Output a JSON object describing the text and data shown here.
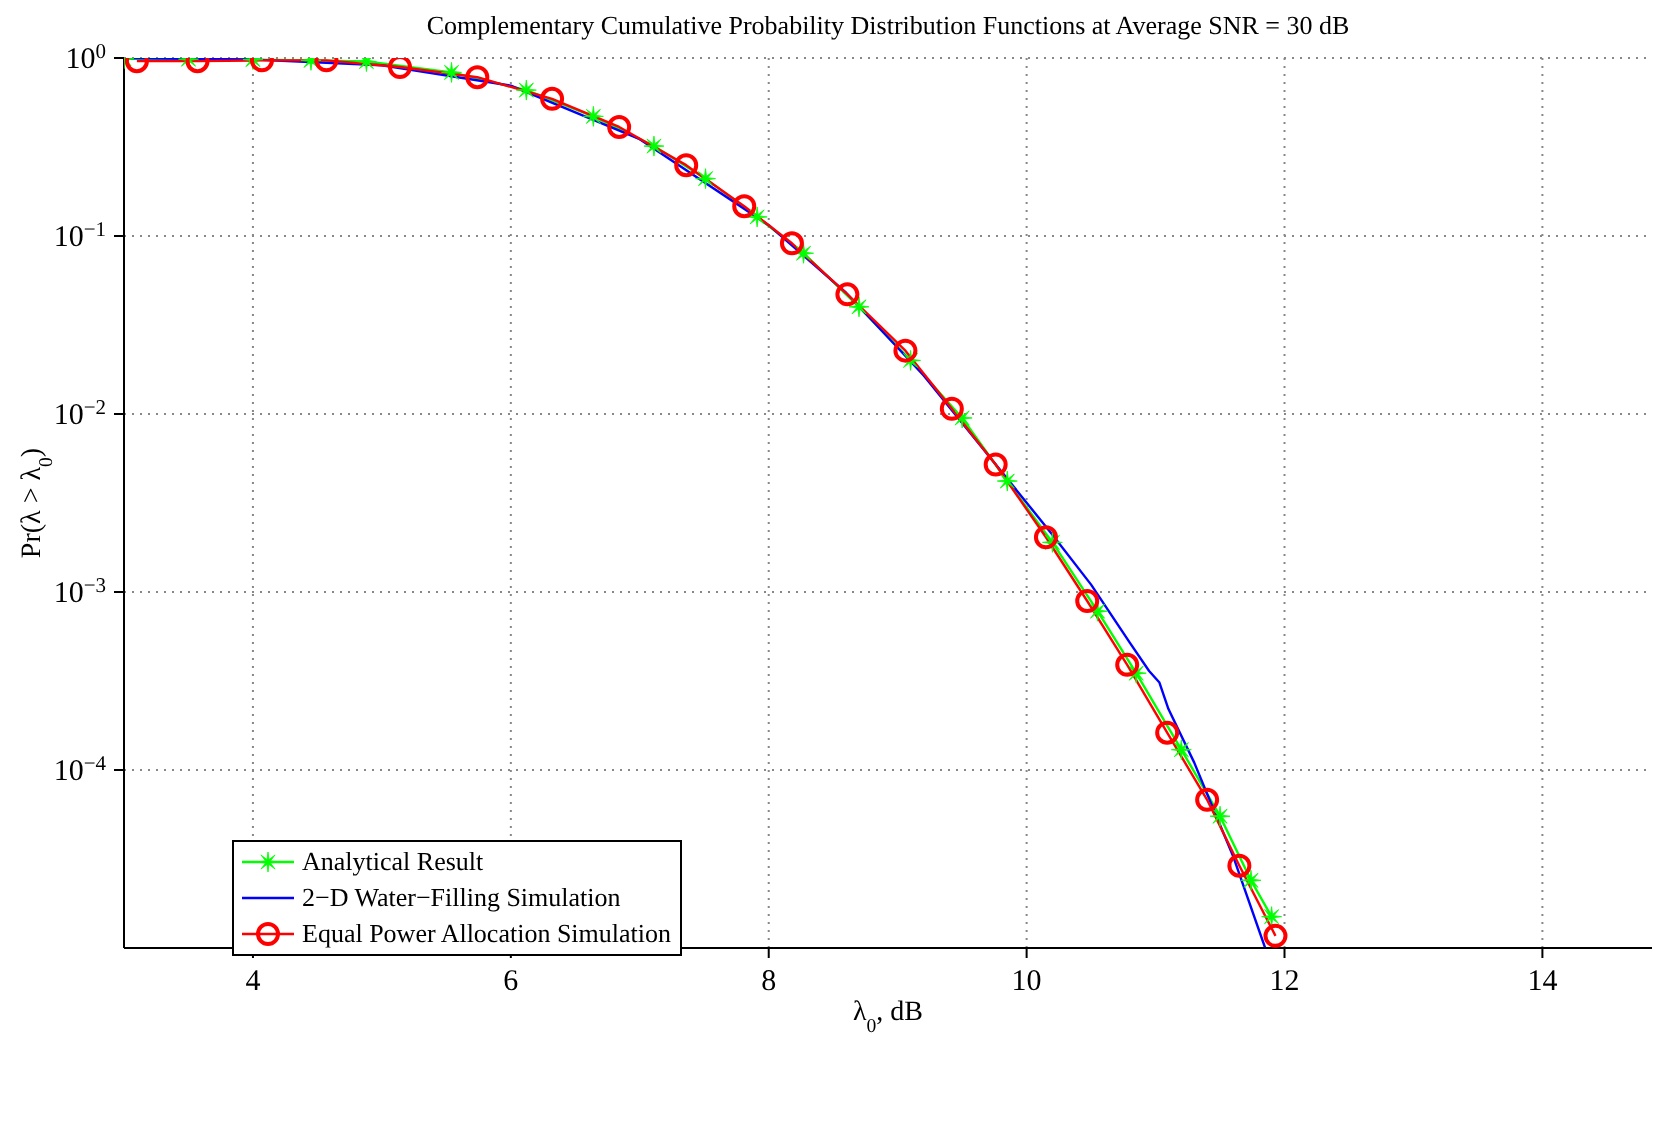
{
  "chart_data": {
    "type": "line",
    "title": "Complementary Cumulative Probability Distribution Functions at Average SNR = 30 dB",
    "xlabel": "λ$_{0}$, dB",
    "ylabel": "Pr(λ > λ$_{0}$)",
    "xlim": [
      3,
      14.85
    ],
    "xticks": [
      4,
      6,
      8,
      10,
      12,
      14
    ],
    "ylim": [
      1e-05,
      1
    ],
    "yticks": [
      {
        "value": 1,
        "label": "10$^{0}$"
      },
      {
        "value": 0.1,
        "label": "10$^{−1}$"
      },
      {
        "value": 0.01,
        "label": "10$^{−2}$"
      },
      {
        "value": 0.001,
        "label": "10$^{−3}$"
      },
      {
        "value": 0.0001,
        "label": "10$^{−4}$"
      }
    ],
    "log": "y",
    "grid": true,
    "legend": "bottom left",
    "series": [
      {
        "name": "Analytical Result",
        "color": "#00ff00",
        "marker": "star",
        "x": [
          3.0,
          3.5,
          4.0,
          4.45,
          4.88,
          5.54,
          6.12,
          6.64,
          7.11,
          7.51,
          7.91,
          8.27,
          8.7,
          9.1,
          9.5,
          9.85,
          10.2,
          10.55,
          10.85,
          11.2,
          11.5,
          11.74,
          11.9
        ],
        "values": [
          0.99,
          0.985,
          0.98,
          0.97,
          0.955,
          0.83,
          0.66,
          0.47,
          0.32,
          0.21,
          0.128,
          0.08,
          0.04,
          0.02,
          0.0095,
          0.0042,
          0.0019,
          0.00078,
          0.00035,
          0.00013,
          5.5e-05,
          2.4e-05,
          1.5e-05
        ]
      },
      {
        "name": "2−D Water−Filling Simulation",
        "color": "#0000ff",
        "marker": "none",
        "x": [
          3.0,
          4.0,
          5.0,
          6.0,
          7.0,
          8.0,
          8.6,
          9.2,
          9.8,
          10.2,
          10.5,
          10.8,
          10.95,
          11.03,
          11.1,
          11.3,
          11.45,
          11.6,
          11.85
        ],
        "values": [
          1,
          0.98,
          0.91,
          0.7,
          0.35,
          0.115,
          0.048,
          0.0165,
          0.0048,
          0.0021,
          0.0011,
          0.00052,
          0.00036,
          0.00031,
          0.00022,
          0.00011,
          6e-05,
          3.3e-05,
          1e-05
        ]
      },
      {
        "name": "Equal Power Allocation Simulation",
        "color": "#ff0000",
        "marker": "circle",
        "x": [
          3.1,
          3.57,
          4.07,
          4.57,
          5.14,
          5.74,
          6.32,
          6.84,
          7.36,
          7.81,
          8.18,
          8.61,
          9.06,
          9.42,
          9.76,
          10.15,
          10.47,
          10.78,
          11.09,
          11.4,
          11.65,
          11.93
        ],
        "values": [
          0.96,
          0.96,
          0.97,
          0.97,
          0.89,
          0.78,
          0.59,
          0.41,
          0.25,
          0.147,
          0.091,
          0.047,
          0.0227,
          0.0107,
          0.0052,
          0.00203,
          0.00089,
          0.00039,
          0.000162,
          6.8e-05,
          2.9e-05,
          1.17e-05
        ]
      }
    ]
  }
}
